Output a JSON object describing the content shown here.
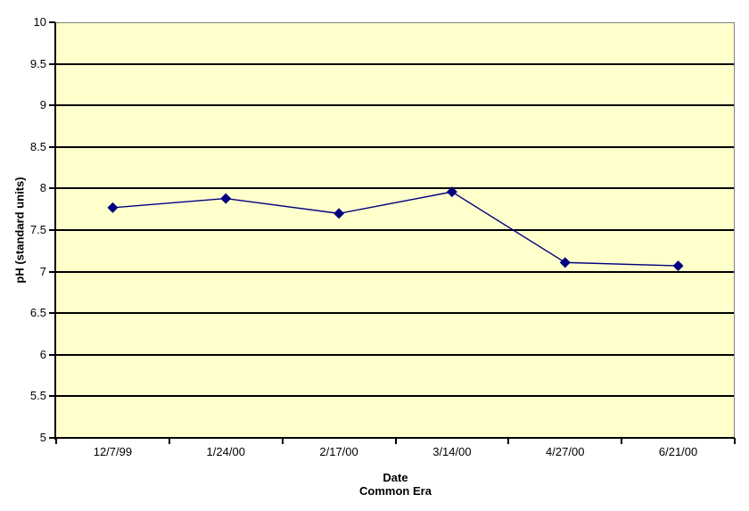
{
  "chart_data": {
    "type": "line",
    "title": "",
    "categories": [
      "12/7/99",
      "1/24/00",
      "2/17/00",
      "3/14/00",
      "4/27/00",
      "6/21/00"
    ],
    "series": [
      {
        "name": "pH",
        "values": [
          7.77,
          7.88,
          7.7,
          7.96,
          7.11,
          7.07
        ]
      }
    ],
    "xlabel_line1": "Date",
    "xlabel_line2": "Common Era",
    "ylabel": "pH (standard units)",
    "ylim": [
      5,
      10
    ],
    "ytick_step": 0.5,
    "ytick_labels": [
      "10",
      "9.5",
      "9",
      "8.5",
      "8",
      "7.5",
      "7",
      "6.5",
      "6",
      "5.5",
      "5"
    ],
    "grid": "horizontal-major",
    "legend": "none",
    "marker_shape": "diamond",
    "colors": {
      "plot_background": "#FFFFCC",
      "outer_background": "#FFFFFF",
      "series_line": "#000080",
      "marker_fill": "#000080",
      "gridline": "#000000",
      "plot_border": "#808080",
      "axis_line": "#000000",
      "text": "#000000"
    }
  }
}
